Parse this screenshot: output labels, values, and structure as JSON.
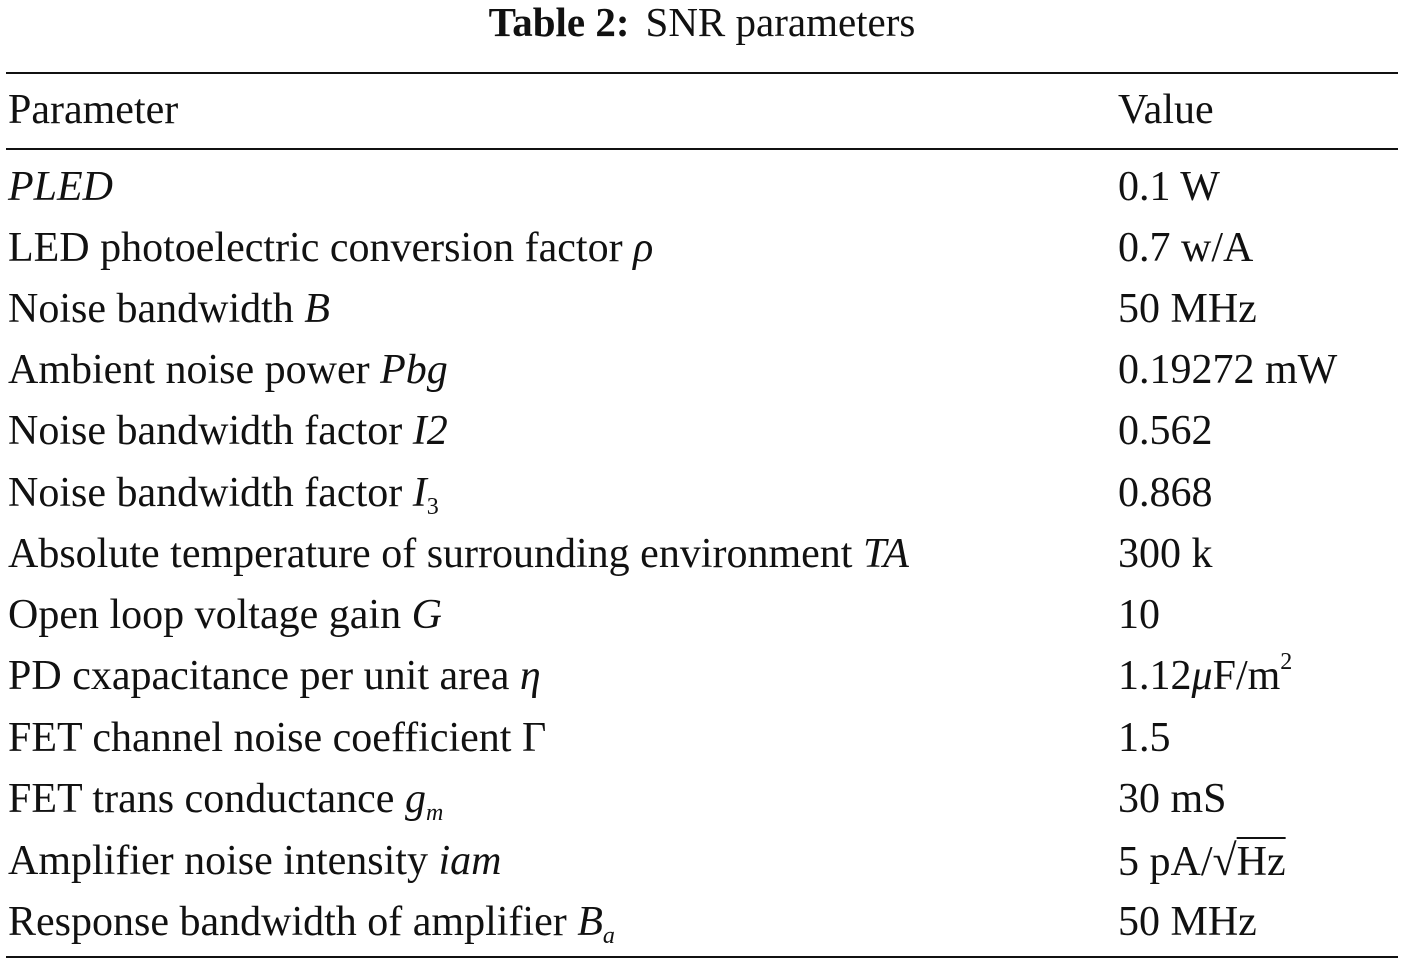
{
  "caption": {
    "label": "Table 2:",
    "title": "SNR parameters"
  },
  "table": {
    "headers": {
      "parameter": "Parameter",
      "value": "Value"
    },
    "rows": [
      {
        "text": "",
        "symbol": "PLED",
        "sub": "",
        "value": "0.1 W"
      },
      {
        "text": "LED photoelectric conversion factor ",
        "symbol": "ρ",
        "sub": "",
        "value": "0.7 w/A"
      },
      {
        "text": "Noise bandwidth ",
        "symbol": "B",
        "sub": "",
        "value": "50 MHz"
      },
      {
        "text": "Ambient noise power ",
        "symbol": "Pbg",
        "sub": "",
        "value": "0.19272 mW"
      },
      {
        "text": "Noise bandwidth factor ",
        "symbol": "I2",
        "sub": "",
        "value": "0.562"
      },
      {
        "text": "Noise bandwidth factor ",
        "symbol": "I",
        "sub": "3",
        "value": "0.868"
      },
      {
        "text": "Absolute temperature of surrounding environment ",
        "symbol": "TA",
        "sub": "",
        "value": "300 k"
      },
      {
        "text": "Open loop voltage gain ",
        "symbol": "G",
        "sub": "",
        "value": "10"
      },
      {
        "text": "PD cxapacitance per unit area ",
        "symbol": "η",
        "sub": "",
        "value_main": "1.12",
        "value_mu": "μ",
        "value_unit": "F/m",
        "value_sup": "2"
      },
      {
        "text": "FET channel noise coefficient ",
        "symbol": "Γ",
        "sub": "",
        "value": "1.5"
      },
      {
        "text": "FET trans conductance ",
        "symbol": "g",
        "sub": "m",
        "value": "30 mS"
      },
      {
        "text": "Amplifier noise intensity ",
        "symbol": "iam",
        "sub": "",
        "value_main": "5 pA/",
        "value_root": "√",
        "value_radicand": "Hz"
      },
      {
        "text": "Response bandwidth of amplifier ",
        "symbol": "B",
        "sub": "a",
        "value": "50 MHz"
      }
    ]
  }
}
